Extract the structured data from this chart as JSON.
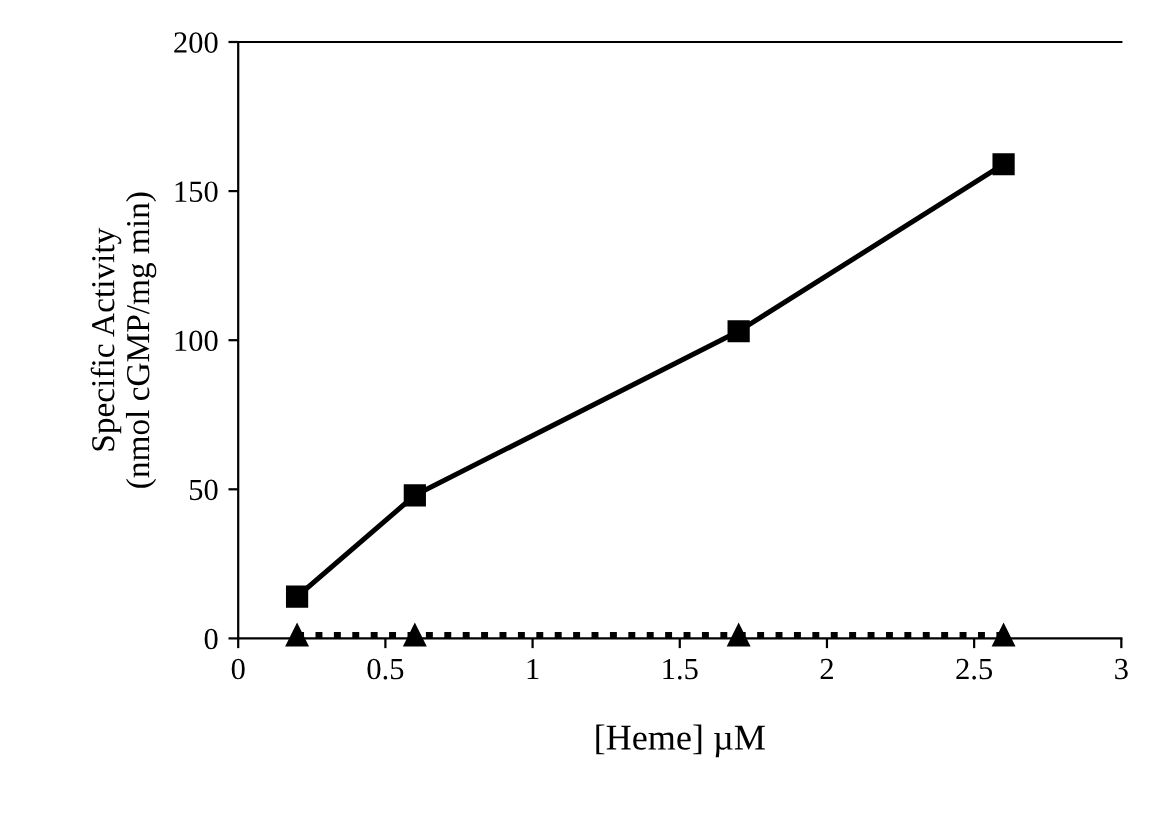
{
  "chart_data": {
    "type": "line",
    "xlabel": "[Heme] µM",
    "ylabel": "Specific Activity\n(nmol cGMP/mg min)",
    "x": [
      0.2,
      0.6,
      1.7,
      2.6
    ],
    "series": [
      {
        "color": "#000000",
        "values": [
          14,
          48,
          103,
          159
        ],
        "marker": "square",
        "line_style": "solid"
      },
      {
        "color": "#000000",
        "values": [
          1,
          1,
          1,
          1
        ],
        "marker": "triangle",
        "line_style": "dotted"
      }
    ],
    "xlim": [
      0,
      3
    ],
    "xticks": [
      0,
      0.5,
      1,
      1.5,
      2,
      2.5,
      3
    ],
    "ylim": [
      0,
      200
    ],
    "yticks": [
      0,
      50,
      100,
      150,
      200
    ],
    "grid": false,
    "legend": false
  }
}
